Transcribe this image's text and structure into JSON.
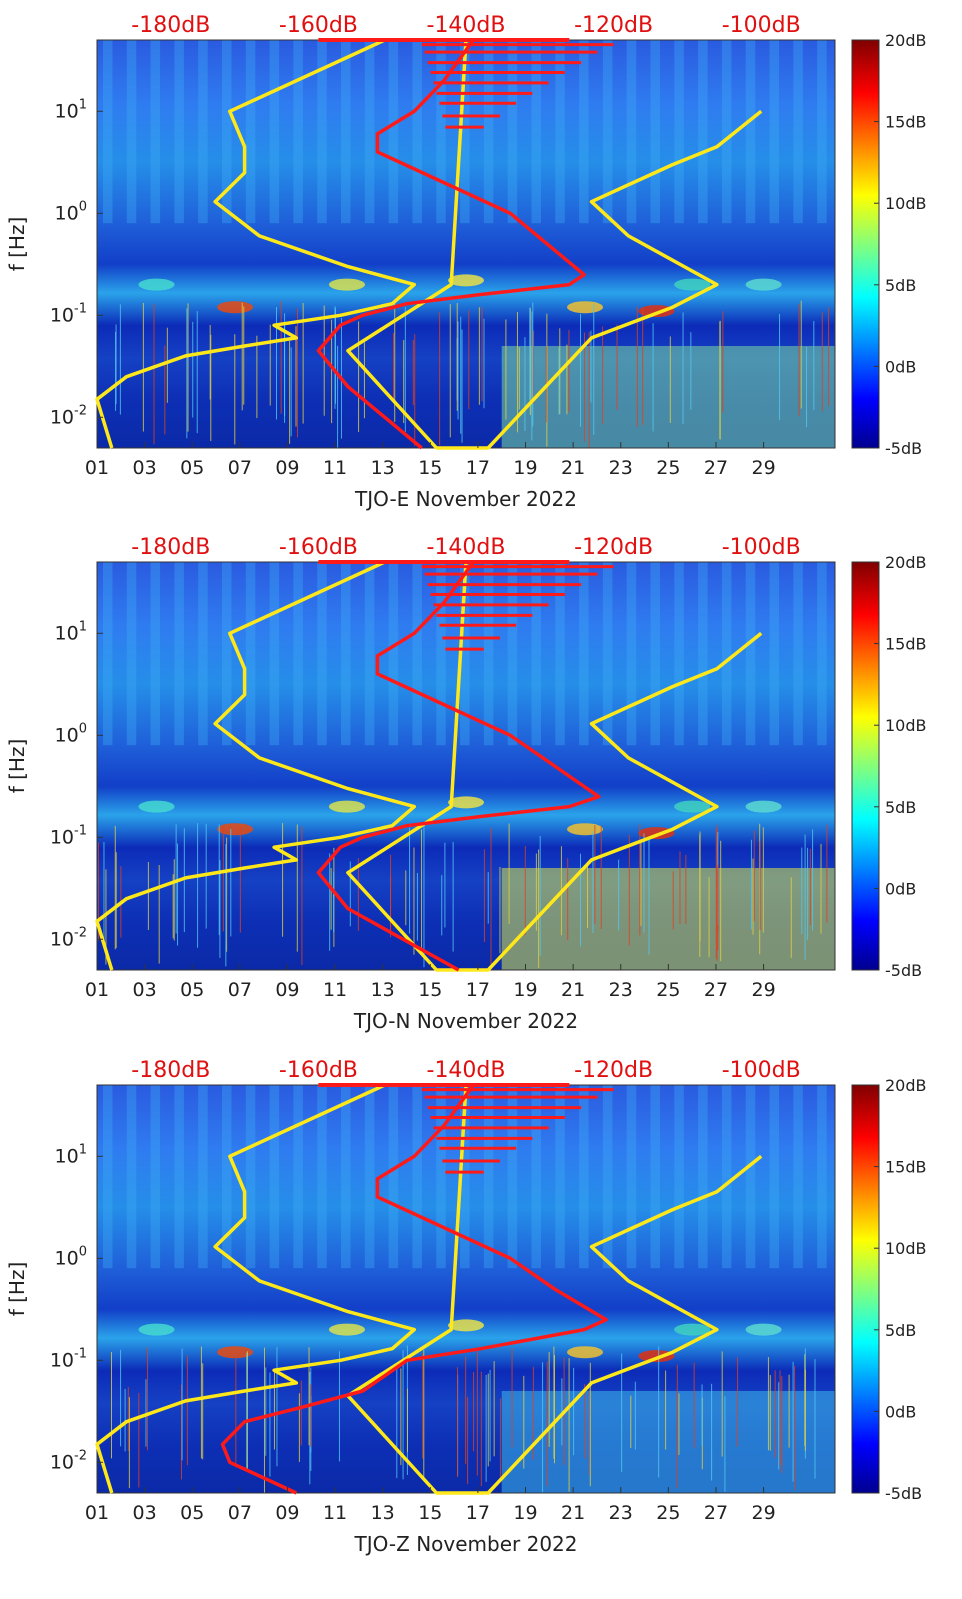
{
  "chart_data": [
    {
      "type": "heatmap",
      "title": "",
      "xlabel": "TJO-E November 2022",
      "ylabel": "f [Hz]",
      "x_ticks": [
        "01",
        "03",
        "05",
        "07",
        "09",
        "11",
        "13",
        "15",
        "17",
        "19",
        "21",
        "23",
        "25",
        "27",
        "29"
      ],
      "y_ticks": [
        "10^-2",
        "10^-1",
        "10^0",
        "10^1"
      ],
      "ylim": [
        0.005,
        50
      ],
      "y_scale": "log",
      "top_axis_ticks": [
        "-180dB",
        "-160dB",
        "-140dB",
        "-120dB",
        "-100dB"
      ],
      "colorbar": {
        "ticks": [
          "-5dB",
          "0dB",
          "5dB",
          "10dB",
          "15dB",
          "20dB"
        ],
        "range": [
          -5,
          20
        ],
        "colormap": "jet"
      },
      "series": [
        {
          "color": "#ffe81a",
          "points": [
            [
              -188,
              0.005
            ],
            [
              -190,
              0.015
            ],
            [
              -186,
              0.025
            ],
            [
              -178,
              0.04
            ],
            [
              -170,
              0.05
            ],
            [
              -163,
              0.06
            ],
            [
              -166,
              0.08
            ],
            [
              -157,
              0.1
            ],
            [
              -150,
              0.13
            ],
            [
              -147,
              0.2
            ],
            [
              -156,
              0.3
            ],
            [
              -168,
              0.6
            ],
            [
              -174,
              1.3
            ],
            [
              -170,
              2.5
            ],
            [
              -170,
              4.5
            ],
            [
              -172,
              10
            ],
            [
              -151,
              50
            ],
            [
              -140,
              50
            ],
            [
              -142,
              0.2
            ],
            [
              -156,
              0.045
            ],
            [
              -144,
              0.005
            ],
            [
              -137,
              0.005
            ],
            [
              -123,
              0.06
            ],
            [
              -112,
              0.12
            ],
            [
              -106,
              0.2
            ],
            [
              -118,
              0.6
            ],
            [
              -123,
              1.3
            ],
            [
              -112,
              3
            ],
            [
              -106,
              4.5
            ],
            [
              -100,
              10
            ]
          ]
        },
        {
          "color": "#ff1a1a",
          "points": [
            [
              -146,
              0.005
            ],
            [
              -156,
              0.02
            ],
            [
              -160,
              0.045
            ],
            [
              -157,
              0.08
            ],
            [
              -154,
              0.1
            ],
            [
              -148,
              0.13
            ],
            [
              -138,
              0.16
            ],
            [
              -126,
              0.2
            ],
            [
              -124,
              0.25
            ],
            [
              -129,
              0.5
            ],
            [
              -134,
              1
            ],
            [
              -143,
              2
            ],
            [
              -152,
              4
            ],
            [
              -152,
              6
            ],
            [
              -147,
              10
            ],
            [
              -143,
              20
            ],
            [
              -139,
              50
            ]
          ]
        }
      ]
    },
    {
      "type": "heatmap",
      "title": "",
      "xlabel": "TJO-N November 2022",
      "ylabel": "f [Hz]",
      "x_ticks": [
        "01",
        "03",
        "05",
        "07",
        "09",
        "11",
        "13",
        "15",
        "17",
        "19",
        "21",
        "23",
        "25",
        "27",
        "29"
      ],
      "y_ticks": [
        "10^-2",
        "10^-1",
        "10^0",
        "10^1"
      ],
      "ylim": [
        0.005,
        50
      ],
      "y_scale": "log",
      "top_axis_ticks": [
        "-180dB",
        "-160dB",
        "-140dB",
        "-120dB",
        "-100dB"
      ],
      "colorbar": {
        "ticks": [
          "-5dB",
          "0dB",
          "5dB",
          "10dB",
          "15dB",
          "20dB"
        ],
        "range": [
          -5,
          20
        ],
        "colormap": "jet"
      },
      "series": [
        {
          "color": "#ffe81a",
          "points": [
            [
              -188,
              0.005
            ],
            [
              -190,
              0.015
            ],
            [
              -186,
              0.025
            ],
            [
              -178,
              0.04
            ],
            [
              -170,
              0.05
            ],
            [
              -163,
              0.06
            ],
            [
              -166,
              0.08
            ],
            [
              -157,
              0.1
            ],
            [
              -150,
              0.13
            ],
            [
              -147,
              0.2
            ],
            [
              -156,
              0.3
            ],
            [
              -168,
              0.6
            ],
            [
              -174,
              1.3
            ],
            [
              -170,
              2.5
            ],
            [
              -170,
              4.5
            ],
            [
              -172,
              10
            ],
            [
              -151,
              50
            ],
            [
              -140,
              50
            ],
            [
              -142,
              0.2
            ],
            [
              -156,
              0.045
            ],
            [
              -144,
              0.005
            ],
            [
              -137,
              0.005
            ],
            [
              -123,
              0.06
            ],
            [
              -112,
              0.12
            ],
            [
              -106,
              0.2
            ],
            [
              -118,
              0.6
            ],
            [
              -123,
              1.3
            ],
            [
              -112,
              3
            ],
            [
              -106,
              4.5
            ],
            [
              -100,
              10
            ]
          ]
        },
        {
          "color": "#ff1a1a",
          "points": [
            [
              -141,
              0.005
            ],
            [
              -156,
              0.02
            ],
            [
              -160,
              0.045
            ],
            [
              -157,
              0.08
            ],
            [
              -154,
              0.1
            ],
            [
              -148,
              0.13
            ],
            [
              -138,
              0.16
            ],
            [
              -126,
              0.2
            ],
            [
              -122,
              0.25
            ],
            [
              -128,
              0.5
            ],
            [
              -134,
              1
            ],
            [
              -143,
              2
            ],
            [
              -152,
              4
            ],
            [
              -152,
              6
            ],
            [
              -147,
              10
            ],
            [
              -143,
              20
            ],
            [
              -139,
              50
            ]
          ]
        }
      ]
    },
    {
      "type": "heatmap",
      "title": "",
      "xlabel": "TJO-Z November 2022",
      "ylabel": "f [Hz]",
      "x_ticks": [
        "01",
        "03",
        "05",
        "07",
        "09",
        "11",
        "13",
        "15",
        "17",
        "19",
        "21",
        "23",
        "25",
        "27",
        "29"
      ],
      "y_ticks": [
        "10^-2",
        "10^-1",
        "10^0",
        "10^1"
      ],
      "ylim": [
        0.005,
        50
      ],
      "y_scale": "log",
      "top_axis_ticks": [
        "-180dB",
        "-160dB",
        "-140dB",
        "-120dB",
        "-100dB"
      ],
      "colorbar": {
        "ticks": [
          "-5dB",
          "0dB",
          "5dB",
          "10dB",
          "15dB",
          "20dB"
        ],
        "range": [
          -5,
          20
        ],
        "colormap": "jet"
      },
      "series": [
        {
          "color": "#ffe81a",
          "points": [
            [
              -188,
              0.005
            ],
            [
              -190,
              0.015
            ],
            [
              -186,
              0.025
            ],
            [
              -178,
              0.04
            ],
            [
              -170,
              0.05
            ],
            [
              -163,
              0.06
            ],
            [
              -166,
              0.08
            ],
            [
              -157,
              0.1
            ],
            [
              -150,
              0.13
            ],
            [
              -147,
              0.2
            ],
            [
              -156,
              0.3
            ],
            [
              -168,
              0.6
            ],
            [
              -174,
              1.3
            ],
            [
              -170,
              2.5
            ],
            [
              -170,
              4.5
            ],
            [
              -172,
              10
            ],
            [
              -151,
              50
            ],
            [
              -140,
              50
            ],
            [
              -142,
              0.2
            ],
            [
              -156,
              0.045
            ],
            [
              -144,
              0.005
            ],
            [
              -137,
              0.005
            ],
            [
              -123,
              0.06
            ],
            [
              -112,
              0.12
            ],
            [
              -106,
              0.2
            ],
            [
              -118,
              0.6
            ],
            [
              -123,
              1.3
            ],
            [
              -112,
              3
            ],
            [
              -106,
              4.5
            ],
            [
              -100,
              10
            ]
          ]
        },
        {
          "color": "#ff1a1a",
          "points": [
            [
              -163,
              0.005
            ],
            [
              -172,
              0.01
            ],
            [
              -173,
              0.015
            ],
            [
              -170,
              0.025
            ],
            [
              -162,
              0.035
            ],
            [
              -154,
              0.05
            ],
            [
              -148,
              0.1
            ],
            [
              -138,
              0.13
            ],
            [
              -124,
              0.2
            ],
            [
              -121,
              0.25
            ],
            [
              -128,
              0.5
            ],
            [
              -134,
              1
            ],
            [
              -143,
              2
            ],
            [
              -152,
              4
            ],
            [
              -152,
              6
            ],
            [
              -147,
              10
            ],
            [
              -143,
              20
            ],
            [
              -139,
              50
            ]
          ]
        }
      ]
    }
  ]
}
